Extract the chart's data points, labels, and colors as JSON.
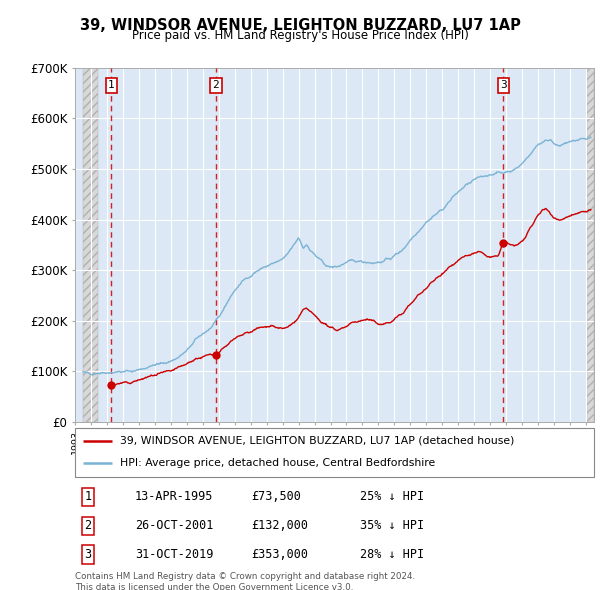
{
  "title": "39, WINDSOR AVENUE, LEIGHTON BUZZARD, LU7 1AP",
  "subtitle": "Price paid vs. HM Land Registry's House Price Index (HPI)",
  "ylim": [
    0,
    700000
  ],
  "yticks": [
    0,
    100000,
    200000,
    300000,
    400000,
    500000,
    600000,
    700000
  ],
  "ytick_labels": [
    "£0",
    "£100K",
    "£200K",
    "£300K",
    "£400K",
    "£500K",
    "£600K",
    "£700K"
  ],
  "sale_dates_num": [
    1995.28,
    2001.82,
    2019.83
  ],
  "sale_prices": [
    73500,
    132000,
    353000
  ],
  "sale_labels": [
    "1",
    "2",
    "3"
  ],
  "hpi_color": "#7ab3d4",
  "price_color": "#cc0000",
  "vline_color": "#cc0000",
  "legend_price_label": "39, WINDSOR AVENUE, LEIGHTON BUZZARD, LU7 1AP (detached house)",
  "legend_hpi_label": "HPI: Average price, detached house, Central Bedfordshire",
  "table_data": [
    [
      "1",
      "13-APR-1995",
      "£73,500",
      "25% ↓ HPI"
    ],
    [
      "2",
      "26-OCT-2001",
      "£132,000",
      "35% ↓ HPI"
    ],
    [
      "3",
      "31-OCT-2019",
      "£353,000",
      "28% ↓ HPI"
    ]
  ],
  "footnote": "Contains HM Land Registry data © Crown copyright and database right 2024.\nThis data is licensed under the Open Government Licence v3.0.",
  "plot_bg_color": "#dce8f5",
  "hatch_bg_color": "#d8d8d8",
  "x_min": 1993.5,
  "x_max": 2025.5
}
